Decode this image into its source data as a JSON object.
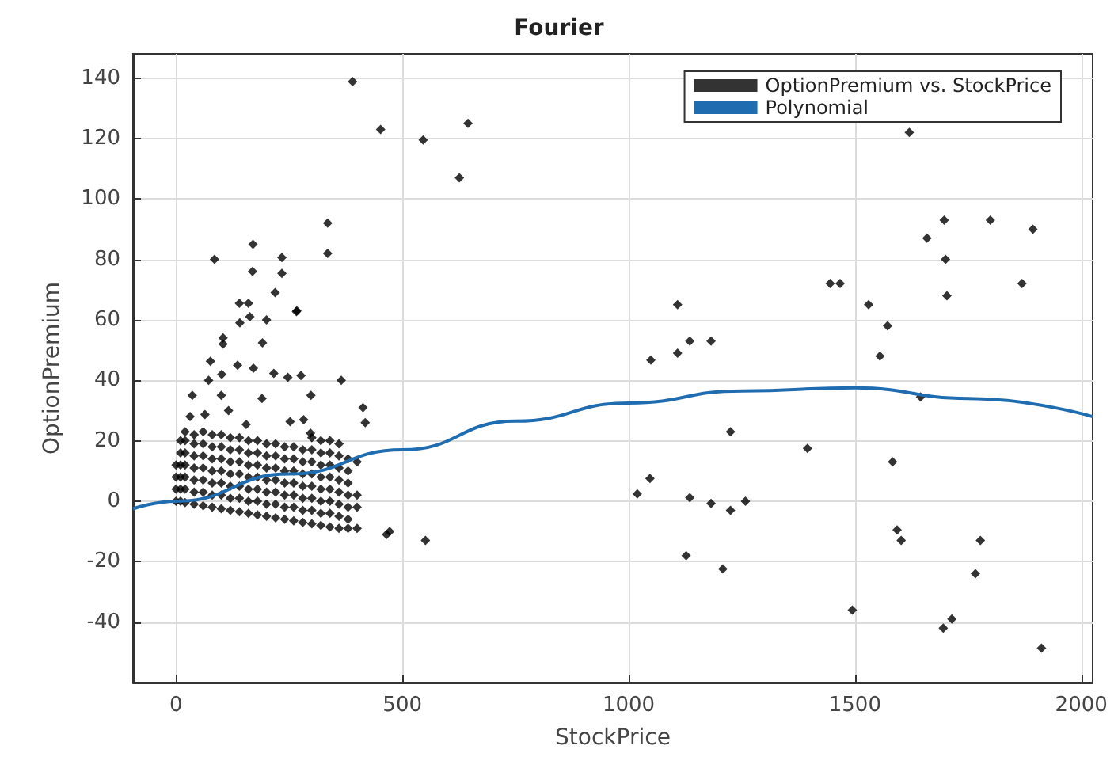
{
  "chart_data": {
    "type": "scatter",
    "title": "Fourier",
    "xlabel": "StockPrice",
    "ylabel": "OptionPremium",
    "xlim": [
      -95,
      2025
    ],
    "xticks": [
      0,
      500,
      1000,
      1500,
      2000
    ],
    "ylim": [
      -60,
      148
    ],
    "yticks": [
      -40,
      -20,
      0,
      20,
      40,
      60,
      80,
      100,
      120,
      140
    ],
    "grid": true,
    "legend": "top right",
    "series": [
      {
        "name": "OptionPremium vs. StockPrice",
        "marker": "diamond",
        "color": "#000000",
        "x": [
          390,
          452,
          546,
          645,
          626,
          335,
          335,
          85,
          170,
          413,
          418,
          365,
          267,
          472,
          465,
          551,
          1019,
          1047,
          1049,
          1108,
          1108,
          1135,
          1182,
          1135,
          1127,
          1182,
          1225,
          1225,
          1258,
          1208,
          1395,
          1445,
          1467,
          1494,
          1530,
          1572,
          1555,
          1583,
          1620,
          1593,
          1602,
          1645,
          1659,
          1697,
          1700,
          1703,
          1695,
          1714,
          1777,
          1766,
          1799,
          1869,
          1893,
          1912,
          169,
          234,
          234,
          219,
          140,
          160,
          141,
          163,
          200,
          191,
          104,
          104,
          266,
          76,
          72,
          101,
          136,
          171,
          216,
          247,
          276,
          298,
          36,
          100,
          190,
          31,
          64,
          116,
          252,
          282,
          155,
          297,
          0,
          0,
          0,
          0,
          10,
          10,
          10,
          10,
          10,
          10,
          20,
          20,
          20,
          20,
          20,
          20,
          20,
          40,
          40,
          40,
          40,
          40,
          40,
          40,
          60,
          60,
          60,
          60,
          60,
          60,
          60,
          80,
          80,
          80,
          80,
          80,
          80,
          80,
          100,
          100,
          100,
          100,
          100,
          100,
          100,
          120,
          120,
          120,
          120,
          120,
          120,
          120,
          140,
          140,
          140,
          140,
          140,
          140,
          140,
          160,
          160,
          160,
          160,
          160,
          160,
          160,
          180,
          180,
          180,
          180,
          180,
          180,
          180,
          200,
          200,
          200,
          200,
          200,
          200,
          200,
          220,
          220,
          220,
          220,
          220,
          220,
          220,
          240,
          240,
          240,
          240,
          240,
          240,
          240,
          260,
          260,
          260,
          260,
          260,
          260,
          260,
          280,
          280,
          280,
          280,
          280,
          280,
          280,
          300,
          300,
          300,
          300,
          300,
          300,
          300,
          300,
          320,
          320,
          320,
          320,
          320,
          320,
          320,
          320,
          340,
          340,
          340,
          340,
          340,
          340,
          340,
          340,
          360,
          360,
          360,
          360,
          360,
          360,
          360,
          360,
          380,
          380,
          380,
          380,
          380,
          380,
          380,
          400,
          400,
          400,
          400
        ],
        "values": [
          138.8,
          123,
          119.5,
          125,
          107,
          92,
          82,
          80,
          85,
          31,
          26,
          40,
          63,
          -10,
          -11,
          -13,
          2.4,
          7.5,
          46.7,
          65,
          49,
          53,
          53,
          1.2,
          -18,
          -0.7,
          -3,
          23,
          0,
          -22.4,
          17.5,
          72,
          72,
          -36,
          65,
          58,
          48,
          13,
          122,
          -9.5,
          -13,
          34.5,
          87,
          93,
          80,
          68,
          -42,
          -39,
          -13,
          -24,
          93,
          72,
          90,
          -48.6,
          76,
          80.6,
          75.4,
          69,
          65.5,
          65.5,
          59,
          61,
          60,
          52.4,
          54,
          52,
          62.7,
          46.3,
          40,
          42,
          45,
          44,
          42.3,
          41,
          41.6,
          35,
          35,
          35,
          34,
          28,
          28.7,
          30,
          26.3,
          27,
          25.4,
          22.5,
          0,
          4,
          8,
          12,
          0,
          4,
          8,
          12,
          16,
          20,
          -0.5,
          4,
          8,
          12,
          16,
          20,
          23,
          -1,
          3,
          7,
          11,
          15,
          19,
          22,
          -1.5,
          3,
          7,
          11,
          15,
          19,
          23,
          -2,
          2,
          6,
          10,
          14,
          18,
          22,
          -2.5,
          2,
          6,
          10,
          14,
          18,
          22,
          -3,
          1,
          5,
          9,
          13,
          17,
          21,
          -3.5,
          1,
          5,
          9,
          13,
          17,
          21,
          -4,
          0,
          4,
          8,
          12,
          16,
          20,
          -4.5,
          0,
          4,
          8,
          12,
          16,
          20,
          -5,
          -1,
          3,
          7,
          11,
          15,
          19,
          -5.5,
          -1,
          3,
          7,
          11,
          15,
          19,
          -6,
          -2,
          2,
          6,
          10,
          14,
          18,
          -6.5,
          -2,
          2,
          6,
          10,
          14,
          18,
          -7,
          -3,
          1,
          5,
          9,
          13,
          17,
          -7.5,
          -3,
          1,
          5,
          9,
          13,
          17,
          21,
          -8,
          -4,
          0,
          4,
          8,
          12,
          16,
          20,
          -8.5,
          -4,
          0,
          4,
          8,
          12,
          16,
          20,
          -9,
          -5,
          -1,
          3,
          7,
          11,
          15,
          19,
          -9,
          -6,
          -2,
          2,
          6,
          10,
          14,
          -9,
          -2,
          2,
          13
        ]
      },
      {
        "name": "Polynomial",
        "type": "line",
        "marker": "none",
        "line_style": "solid",
        "color": "#1f6cb0",
        "x": [
          -95,
          0,
          250,
          500,
          750,
          1000,
          1250,
          1500,
          1750,
          2025
        ],
        "values": [
          -2.5,
          0,
          9,
          17,
          26.5,
          32.5,
          36.5,
          37.5,
          34,
          28
        ]
      }
    ]
  }
}
